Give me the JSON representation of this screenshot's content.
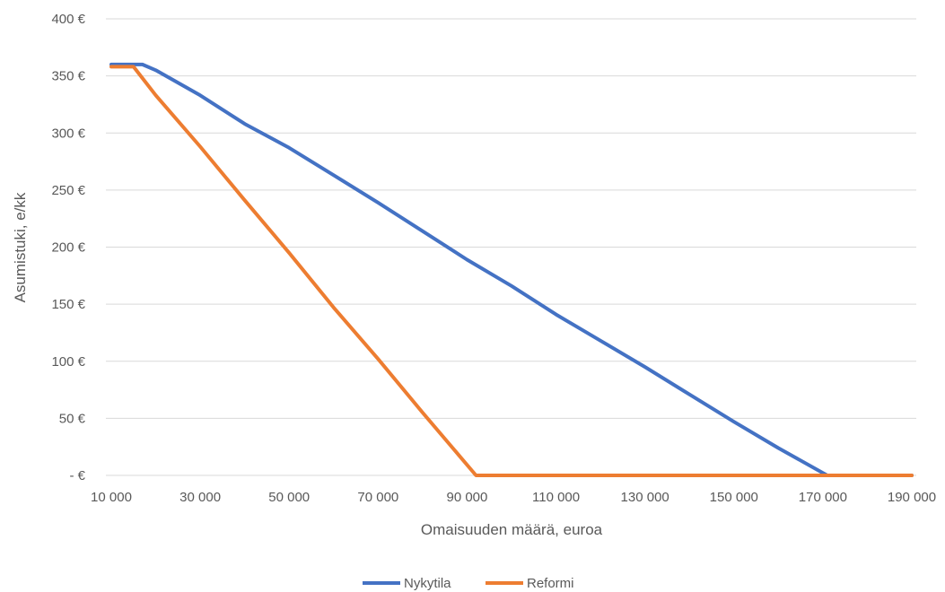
{
  "chart_data": {
    "type": "line",
    "title": "",
    "xlabel": "Omaisuuden määrä, euroa",
    "ylabel": "Asumistuki, e/kk",
    "xlim": [
      10000,
      190000
    ],
    "ylim": [
      0,
      400
    ],
    "grid": true,
    "legend_position": "bottom",
    "x_ticks": [
      {
        "value": 10000,
        "label": "10 000"
      },
      {
        "value": 30000,
        "label": "30 000"
      },
      {
        "value": 50000,
        "label": "50 000"
      },
      {
        "value": 70000,
        "label": "70 000"
      },
      {
        "value": 90000,
        "label": "90 000"
      },
      {
        "value": 110000,
        "label": "110 000"
      },
      {
        "value": 130000,
        "label": "130 000"
      },
      {
        "value": 150000,
        "label": "150 000"
      },
      {
        "value": 170000,
        "label": "170 000"
      },
      {
        "value": 190000,
        "label": "190 000"
      }
    ],
    "y_ticks": [
      {
        "value": 0,
        "label": "-  €"
      },
      {
        "value": 50,
        "label": "50 €"
      },
      {
        "value": 100,
        "label": "100 €"
      },
      {
        "value": 150,
        "label": "150 €"
      },
      {
        "value": 200,
        "label": "200 €"
      },
      {
        "value": 250,
        "label": "250 €"
      },
      {
        "value": 300,
        "label": "300 €"
      },
      {
        "value": 350,
        "label": "350 €"
      },
      {
        "value": 400,
        "label": "400 €"
      }
    ],
    "series": [
      {
        "name": "Nykytila",
        "color": "#4472c4",
        "points": [
          [
            10000,
            360
          ],
          [
            17000,
            360
          ],
          [
            20000,
            355
          ],
          [
            30000,
            333
          ],
          [
            40000,
            308
          ],
          [
            50000,
            287
          ],
          [
            60000,
            263
          ],
          [
            70000,
            239
          ],
          [
            80000,
            214
          ],
          [
            90000,
            189
          ],
          [
            100000,
            166
          ],
          [
            110000,
            141
          ],
          [
            120000,
            118
          ],
          [
            130000,
            95
          ],
          [
            140000,
            71
          ],
          [
            150000,
            47
          ],
          [
            160000,
            24
          ],
          [
            171000,
            0
          ],
          [
            190000,
            0
          ]
        ]
      },
      {
        "name": "Reformi",
        "color": "#ed7d31",
        "points": [
          [
            10000,
            358
          ],
          [
            15000,
            358
          ],
          [
            20000,
            333
          ],
          [
            30000,
            288
          ],
          [
            40000,
            241
          ],
          [
            50000,
            195
          ],
          [
            60000,
            147
          ],
          [
            70000,
            102
          ],
          [
            80000,
            55
          ],
          [
            92000,
            0
          ],
          [
            190000,
            0
          ]
        ]
      }
    ]
  }
}
